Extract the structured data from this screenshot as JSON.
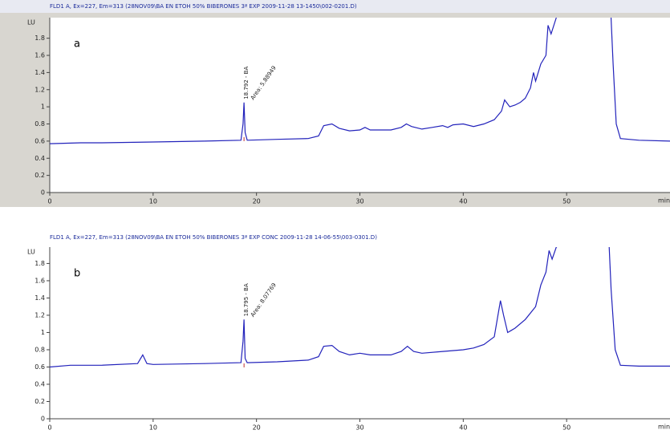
{
  "chart_data": [
    {
      "type": "line",
      "title": "FLD1 A, Ex=227, Em=313 (28NOV09\\BA EN ETOH 50% BIBERONES 3ª EXP 2009-11-28 13-1450\\002-0201.D)",
      "panel_label": "a",
      "y_label": "LU",
      "x_label": "min",
      "peak": {
        "retention_time": 18.792,
        "label": "18.792 - BA",
        "area_label": "Area: 5.88949"
      },
      "color": "#2222bb",
      "xlim": [
        0,
        60
      ],
      "xticks": [
        0,
        10,
        20,
        30,
        40,
        50
      ],
      "ylim": [
        0,
        2.04
      ],
      "yticks": [
        0,
        0.2,
        0.4,
        0.6,
        0.8,
        1,
        1.2,
        1.4,
        1.6,
        1.8
      ],
      "x": [
        0,
        3,
        5,
        10,
        15,
        18.5,
        18.7,
        18.79,
        18.9,
        19.1,
        22,
        25,
        26,
        26.5,
        27.3,
        28,
        29,
        30,
        30.5,
        31,
        33,
        34,
        34.5,
        35,
        36,
        37,
        38,
        38.5,
        39,
        40,
        41,
        42,
        43,
        43.7,
        44,
        44.5,
        45,
        45.5,
        46,
        46.5,
        46.8,
        47,
        47.5,
        48,
        48.2,
        48.5,
        49,
        49.5,
        54.2,
        54.5,
        54.8,
        55.2,
        57,
        60
      ],
      "values": [
        0.57,
        0.58,
        0.58,
        0.59,
        0.6,
        0.61,
        0.8,
        1.05,
        0.7,
        0.61,
        0.62,
        0.63,
        0.66,
        0.78,
        0.8,
        0.75,
        0.72,
        0.73,
        0.76,
        0.73,
        0.73,
        0.76,
        0.8,
        0.77,
        0.74,
        0.76,
        0.78,
        0.76,
        0.79,
        0.8,
        0.77,
        0.8,
        0.85,
        0.95,
        1.08,
        1.0,
        1.02,
        1.05,
        1.1,
        1.22,
        1.4,
        1.3,
        1.5,
        1.6,
        1.95,
        1.85,
        2.04,
        2.3,
        2.3,
        1.5,
        0.8,
        0.63,
        0.61,
        0.6
      ]
    },
    {
      "type": "line",
      "title": "FLD1 A, Ex=227, Em=313 (28NOV09\\BA EN ETOH 50% BIBERONES 3ª EXP CONC 2009-11-28 14-06-55\\003-0301.D)",
      "panel_label": "b",
      "y_label": "LU",
      "x_label": "min",
      "peak": {
        "retention_time": 18.795,
        "label": "18.795 - BA",
        "area_label": "Area: 8.07769"
      },
      "color": "#2222bb",
      "xlim": [
        0,
        60
      ],
      "xticks": [
        0,
        10,
        20,
        30,
        40,
        50
      ],
      "ylim": [
        0,
        1.99
      ],
      "yticks": [
        0,
        0.2,
        0.4,
        0.6,
        0.8,
        1,
        1.2,
        1.4,
        1.6,
        1.8
      ],
      "x": [
        0,
        2,
        5,
        8.5,
        9,
        9.4,
        10,
        15,
        18.5,
        18.7,
        18.795,
        18.9,
        19.1,
        22,
        25,
        26,
        26.5,
        27.3,
        28,
        29,
        30,
        31,
        33,
        34,
        34.6,
        35.2,
        36,
        38,
        40,
        41,
        42,
        43,
        43.6,
        43.9,
        44.3,
        45,
        46,
        47,
        47.5,
        48,
        48.3,
        48.6,
        49,
        54,
        54.3,
        54.7,
        55.2,
        57,
        60
      ],
      "values": [
        0.6,
        0.62,
        0.62,
        0.64,
        0.74,
        0.64,
        0.63,
        0.64,
        0.65,
        0.9,
        1.15,
        0.7,
        0.65,
        0.66,
        0.68,
        0.72,
        0.84,
        0.85,
        0.78,
        0.74,
        0.76,
        0.74,
        0.74,
        0.78,
        0.84,
        0.78,
        0.76,
        0.78,
        0.8,
        0.82,
        0.86,
        0.95,
        1.37,
        1.2,
        1.0,
        1.05,
        1.15,
        1.3,
        1.55,
        1.7,
        1.95,
        1.85,
        1.99,
        2.3,
        1.5,
        0.8,
        0.62,
        0.61,
        0.61
      ]
    }
  ]
}
